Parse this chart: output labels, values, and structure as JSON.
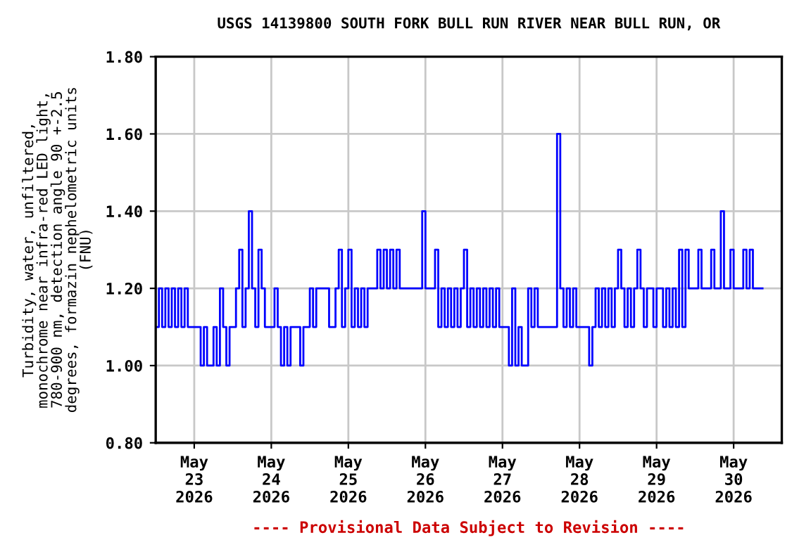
{
  "chart_data": {
    "type": "step",
    "title": "USGS 14139800 SOUTH FORK BULL RUN RIVER NEAR BULL RUN, OR",
    "ylabel": "Turbidity, water, unfiltered,\nmonochrome near infra-red LED light,\n780-900 nm, detection angle 90 +-2.5\ndegrees, formazin nephelometric units\n(FNU)",
    "annotations": [
      "---- Provisional Data Subject to Revision ----"
    ],
    "x": [
      "2026-05-22T12:00",
      "2026-05-22T13:00",
      "2026-05-22T14:00",
      "2026-05-22T15:00",
      "2026-05-22T16:00",
      "2026-05-22T17:00",
      "2026-05-22T18:00",
      "2026-05-22T19:00",
      "2026-05-22T20:00",
      "2026-05-22T21:00",
      "2026-05-22T22:00",
      "2026-05-22T23:00",
      "2026-05-23T00:00",
      "2026-05-23T01:00",
      "2026-05-23T02:00",
      "2026-05-23T03:00",
      "2026-05-23T04:00",
      "2026-05-23T05:00",
      "2026-05-23T06:00",
      "2026-05-23T07:00",
      "2026-05-23T08:00",
      "2026-05-23T09:00",
      "2026-05-23T10:00",
      "2026-05-23T11:00",
      "2026-05-23T12:00",
      "2026-05-23T13:00",
      "2026-05-23T14:00",
      "2026-05-23T15:00",
      "2026-05-23T16:00",
      "2026-05-23T17:00",
      "2026-05-23T18:00",
      "2026-05-23T19:00",
      "2026-05-23T20:00",
      "2026-05-23T21:00",
      "2026-05-23T22:00",
      "2026-05-23T23:00",
      "2026-05-24T00:00",
      "2026-05-24T01:00",
      "2026-05-24T02:00",
      "2026-05-24T03:00",
      "2026-05-24T04:00",
      "2026-05-24T05:00",
      "2026-05-24T06:00",
      "2026-05-24T07:00",
      "2026-05-24T08:00",
      "2026-05-24T09:00",
      "2026-05-24T10:00",
      "2026-05-24T11:00",
      "2026-05-24T12:00",
      "2026-05-24T13:00",
      "2026-05-24T14:00",
      "2026-05-24T15:00",
      "2026-05-24T16:00",
      "2026-05-24T17:00",
      "2026-05-24T18:00",
      "2026-05-24T19:00",
      "2026-05-24T20:00",
      "2026-05-24T21:00",
      "2026-05-24T22:00",
      "2026-05-24T23:00",
      "2026-05-25T00:00",
      "2026-05-25T01:00",
      "2026-05-25T02:00",
      "2026-05-25T03:00",
      "2026-05-25T04:00",
      "2026-05-25T05:00",
      "2026-05-25T06:00",
      "2026-05-25T07:00",
      "2026-05-25T08:00",
      "2026-05-25T09:00",
      "2026-05-25T10:00",
      "2026-05-25T11:00",
      "2026-05-25T12:00",
      "2026-05-25T13:00",
      "2026-05-25T14:00",
      "2026-05-25T15:00",
      "2026-05-25T16:00",
      "2026-05-25T17:00",
      "2026-05-25T18:00",
      "2026-05-25T19:00",
      "2026-05-25T20:00",
      "2026-05-25T21:00",
      "2026-05-25T22:00",
      "2026-05-25T23:00",
      "2026-05-26T00:00",
      "2026-05-26T01:00",
      "2026-05-26T02:00",
      "2026-05-26T03:00",
      "2026-05-26T04:00",
      "2026-05-26T05:00",
      "2026-05-26T06:00",
      "2026-05-26T07:00",
      "2026-05-26T08:00",
      "2026-05-26T09:00",
      "2026-05-26T10:00",
      "2026-05-26T11:00",
      "2026-05-26T12:00",
      "2026-05-26T13:00",
      "2026-05-26T14:00",
      "2026-05-26T15:00",
      "2026-05-26T16:00",
      "2026-05-26T17:00",
      "2026-05-26T18:00",
      "2026-05-26T19:00",
      "2026-05-26T20:00",
      "2026-05-26T21:00",
      "2026-05-26T22:00",
      "2026-05-26T23:00",
      "2026-05-27T00:00",
      "2026-05-27T01:00",
      "2026-05-27T02:00",
      "2026-05-27T03:00",
      "2026-05-27T04:00",
      "2026-05-27T05:00",
      "2026-05-27T06:00",
      "2026-05-27T07:00",
      "2026-05-27T08:00",
      "2026-05-27T09:00",
      "2026-05-27T10:00",
      "2026-05-27T11:00",
      "2026-05-27T12:00",
      "2026-05-27T13:00",
      "2026-05-27T14:00",
      "2026-05-27T15:00",
      "2026-05-27T16:00",
      "2026-05-27T17:00",
      "2026-05-27T18:00",
      "2026-05-27T19:00",
      "2026-05-27T20:00",
      "2026-05-27T21:00",
      "2026-05-27T22:00",
      "2026-05-27T23:00",
      "2026-05-28T00:00",
      "2026-05-28T01:00",
      "2026-05-28T02:00",
      "2026-05-28T03:00",
      "2026-05-28T04:00",
      "2026-05-28T05:00",
      "2026-05-28T06:00",
      "2026-05-28T07:00",
      "2026-05-28T08:00",
      "2026-05-28T09:00",
      "2026-05-28T10:00",
      "2026-05-28T11:00",
      "2026-05-28T12:00",
      "2026-05-28T13:00",
      "2026-05-28T14:00",
      "2026-05-28T15:00",
      "2026-05-28T16:00",
      "2026-05-28T17:00",
      "2026-05-28T18:00",
      "2026-05-28T19:00",
      "2026-05-28T20:00",
      "2026-05-28T21:00",
      "2026-05-28T22:00",
      "2026-05-28T23:00",
      "2026-05-29T00:00",
      "2026-05-29T01:00",
      "2026-05-29T02:00",
      "2026-05-29T03:00",
      "2026-05-29T04:00",
      "2026-05-29T05:00",
      "2026-05-29T06:00",
      "2026-05-29T07:00",
      "2026-05-29T08:00",
      "2026-05-29T09:00",
      "2026-05-29T10:00",
      "2026-05-29T11:00",
      "2026-05-29T12:00",
      "2026-05-29T13:00",
      "2026-05-29T14:00",
      "2026-05-29T15:00",
      "2026-05-29T16:00",
      "2026-05-29T17:00",
      "2026-05-29T18:00",
      "2026-05-29T19:00",
      "2026-05-29T20:00",
      "2026-05-29T21:00",
      "2026-05-29T22:00",
      "2026-05-29T23:00",
      "2026-05-30T00:00",
      "2026-05-30T01:00",
      "2026-05-30T02:00",
      "2026-05-30T03:00",
      "2026-05-30T04:00",
      "2026-05-30T05:00",
      "2026-05-30T06:00",
      "2026-05-30T07:00",
      "2026-05-30T08:00",
      "2026-05-30T09:00"
    ],
    "series": [
      {
        "color": "#0000ff",
        "values": [
          1.1,
          1.2,
          1.1,
          1.2,
          1.1,
          1.2,
          1.1,
          1.2,
          1.1,
          1.2,
          1.1,
          1.1,
          1.1,
          1.1,
          1.0,
          1.1,
          1.0,
          1.0,
          1.1,
          1.0,
          1.2,
          1.1,
          1.0,
          1.1,
          1.1,
          1.2,
          1.3,
          1.1,
          1.2,
          1.4,
          1.2,
          1.1,
          1.3,
          1.2,
          1.1,
          1.1,
          1.1,
          1.2,
          1.1,
          1.0,
          1.1,
          1.0,
          1.1,
          1.1,
          1.1,
          1.0,
          1.1,
          1.1,
          1.2,
          1.1,
          1.2,
          1.2,
          1.2,
          1.2,
          1.1,
          1.1,
          1.2,
          1.3,
          1.1,
          1.2,
          1.3,
          1.1,
          1.2,
          1.1,
          1.2,
          1.1,
          1.2,
          1.2,
          1.2,
          1.3,
          1.2,
          1.3,
          1.2,
          1.3,
          1.2,
          1.3,
          1.2,
          1.2,
          1.2,
          1.2,
          1.2,
          1.2,
          1.2,
          1.4,
          1.2,
          1.2,
          1.2,
          1.3,
          1.1,
          1.2,
          1.1,
          1.2,
          1.1,
          1.2,
          1.1,
          1.2,
          1.3,
          1.1,
          1.2,
          1.1,
          1.2,
          1.1,
          1.2,
          1.1,
          1.2,
          1.1,
          1.2,
          1.1,
          1.1,
          1.1,
          1.0,
          1.2,
          1.0,
          1.1,
          1.0,
          1.0,
          1.2,
          1.1,
          1.2,
          1.1,
          1.1,
          1.1,
          1.1,
          1.1,
          1.1,
          1.6,
          1.2,
          1.1,
          1.2,
          1.1,
          1.2,
          1.1,
          1.1,
          1.1,
          1.1,
          1.0,
          1.1,
          1.2,
          1.1,
          1.2,
          1.1,
          1.2,
          1.1,
          1.2,
          1.3,
          1.2,
          1.1,
          1.2,
          1.1,
          1.2,
          1.3,
          1.2,
          1.1,
          1.2,
          1.2,
          1.1,
          1.2,
          1.2,
          1.1,
          1.2,
          1.1,
          1.2,
          1.1,
          1.3,
          1.1,
          1.3,
          1.2,
          1.2,
          1.2,
          1.3,
          1.2,
          1.2,
          1.2,
          1.3,
          1.2,
          1.2,
          1.4,
          1.2,
          1.2,
          1.3,
          1.2,
          1.2,
          1.2,
          1.3,
          1.2,
          1.3,
          1.2,
          1.2,
          1.2,
          1.2
        ]
      }
    ],
    "xlim": [
      "2026-05-22T12:00",
      "2026-05-30T15:00"
    ],
    "xticks": [
      {
        "value": "2026-05-23",
        "label": "May\n23\n2026"
      },
      {
        "value": "2026-05-24",
        "label": "May\n24\n2026"
      },
      {
        "value": "2026-05-25",
        "label": "May\n25\n2026"
      },
      {
        "value": "2026-05-26",
        "label": "May\n26\n2026"
      },
      {
        "value": "2026-05-27",
        "label": "May\n27\n2026"
      },
      {
        "value": "2026-05-28",
        "label": "May\n28\n2026"
      },
      {
        "value": "2026-05-29",
        "label": "May\n29\n2026"
      },
      {
        "value": "2026-05-30",
        "label": "May\n30\n2026"
      }
    ],
    "ylim": [
      0.8,
      1.8
    ],
    "yticks": [
      {
        "value": 0.8,
        "label": "0.80"
      },
      {
        "value": 1.0,
        "label": "1.00"
      },
      {
        "value": 1.2,
        "label": "1.20"
      },
      {
        "value": 1.4,
        "label": "1.40"
      },
      {
        "value": 1.6,
        "label": "1.60"
      },
      {
        "value": 1.8,
        "label": "1.80"
      }
    ],
    "grid": true,
    "legend": false
  }
}
